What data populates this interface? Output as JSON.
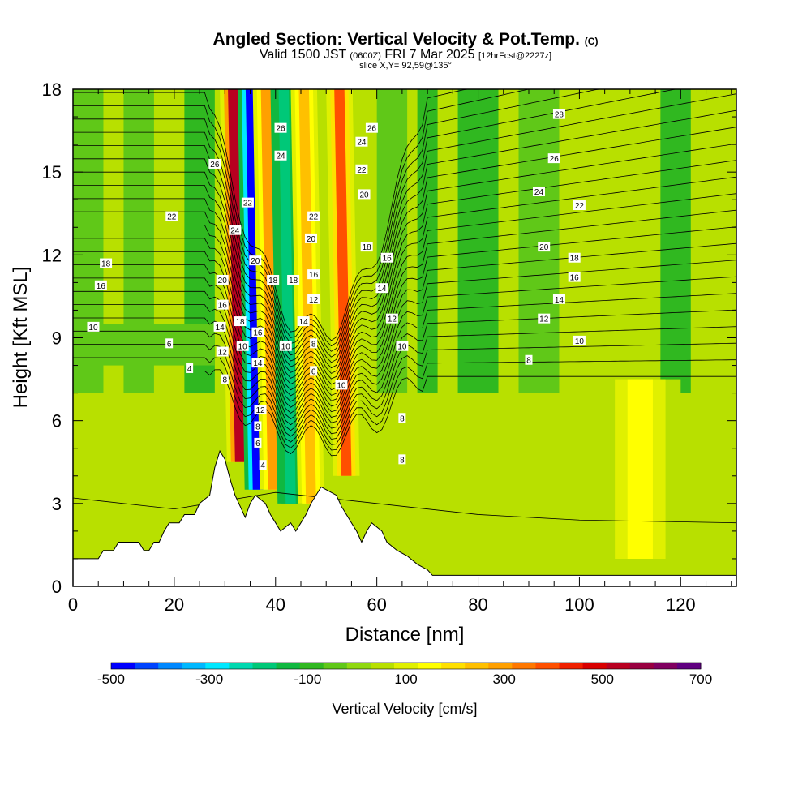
{
  "header": {
    "title_main": "Angled Section: Vertical Velocity & Pot.Temp.",
    "title_copyright": "(C)",
    "valid_prefix": "Valid 1500 JST",
    "valid_utc": "(0600Z)",
    "valid_date": "FRI 7 Mar 2025",
    "forecast_info": "[12hrFcst@2227z]",
    "slice_info": "slice X,Y= 92,59@135°"
  },
  "chart_data": {
    "type": "heatmap",
    "xlabel": "Distance [nm]",
    "ylabel": "Height [Kft MSL]",
    "xlim": [
      0,
      131
    ],
    "ylim": [
      0,
      18
    ],
    "x_ticks": [
      0,
      20,
      40,
      60,
      80,
      100,
      120
    ],
    "y_ticks": [
      0,
      3,
      6,
      9,
      12,
      15,
      18
    ],
    "colorbar": {
      "label": "Vertical Velocity [cm/s]",
      "ticks": [
        -500,
        -300,
        -100,
        100,
        300,
        500,
        700
      ],
      "levels": [
        -500,
        -450,
        -400,
        -350,
        -300,
        -250,
        -200,
        -150,
        -100,
        -50,
        0,
        50,
        100,
        150,
        200,
        250,
        300,
        350,
        400,
        450,
        500,
        550,
        600,
        650,
        700
      ],
      "colors": [
        "#0000ff",
        "#0044ff",
        "#0088ff",
        "#00b8ff",
        "#00e8ff",
        "#00d8b0",
        "#00c878",
        "#10b840",
        "#30b820",
        "#60c818",
        "#90d810",
        "#b8e000",
        "#e0f000",
        "#ffff00",
        "#ffe000",
        "#ffc000",
        "#ffa000",
        "#ff7800",
        "#ff5000",
        "#f02000",
        "#d80000",
        "#b80020",
        "#980040",
        "#800060",
        "#600080"
      ]
    },
    "velocity_features": [
      {
        "x": 33,
        "z_range": [
          4.5,
          18
        ],
        "w": 550,
        "note": "updraft"
      },
      {
        "x": 36.5,
        "z_range": [
          3.5,
          18
        ],
        "w": -480,
        "note": "downdraft"
      },
      {
        "x": 39.5,
        "z_range": [
          3.5,
          18
        ],
        "w": 300,
        "note": "updraft"
      },
      {
        "x": 43,
        "z_range": [
          3,
          18
        ],
        "w": -200,
        "note": "downdraft"
      },
      {
        "x": 47,
        "z_range": [
          3,
          18
        ],
        "w": 280,
        "note": "updraft"
      },
      {
        "x": 54,
        "z_range": [
          4,
          18
        ],
        "w": 400,
        "note": "updraft"
      },
      {
        "x": 112,
        "z_range": [
          1,
          7.5
        ],
        "w": 160,
        "note": "weak updraft"
      }
    ],
    "contour_variable": "Potential temperature",
    "contour_labels": [
      {
        "x": 4,
        "y": 9.4,
        "text": "10"
      },
      {
        "x": 5.5,
        "y": 10.9,
        "text": "16"
      },
      {
        "x": 6.5,
        "y": 11.7,
        "text": "18"
      },
      {
        "x": 19,
        "y": 8.8,
        "text": "6"
      },
      {
        "x": 23,
        "y": 7.9,
        "text": "4"
      },
      {
        "x": 19.5,
        "y": 13.4,
        "text": "22"
      },
      {
        "x": 28,
        "y": 15.3,
        "text": "26"
      },
      {
        "x": 29.5,
        "y": 11.1,
        "text": "20"
      },
      {
        "x": 29.5,
        "y": 10.2,
        "text": "16"
      },
      {
        "x": 29,
        "y": 9.4,
        "text": "14"
      },
      {
        "x": 29.5,
        "y": 8.5,
        "text": "12"
      },
      {
        "x": 30,
        "y": 7.5,
        "text": "8"
      },
      {
        "x": 32,
        "y": 12.9,
        "text": "24"
      },
      {
        "x": 34.5,
        "y": 13.9,
        "text": "22"
      },
      {
        "x": 33,
        "y": 9.6,
        "text": "18"
      },
      {
        "x": 33.5,
        "y": 8.7,
        "text": "10"
      },
      {
        "x": 36,
        "y": 11.8,
        "text": "20"
      },
      {
        "x": 36.5,
        "y": 9.2,
        "text": "16"
      },
      {
        "x": 36.5,
        "y": 8.1,
        "text": "14"
      },
      {
        "x": 37,
        "y": 6.4,
        "text": "12"
      },
      {
        "x": 36.5,
        "y": 5.8,
        "text": "8"
      },
      {
        "x": 36.5,
        "y": 5.2,
        "text": "6"
      },
      {
        "x": 37.5,
        "y": 4.4,
        "text": "4"
      },
      {
        "x": 41,
        "y": 16.6,
        "text": "26"
      },
      {
        "x": 41,
        "y": 15.6,
        "text": "24"
      },
      {
        "x": 39.5,
        "y": 11.1,
        "text": "18"
      },
      {
        "x": 42,
        "y": 8.7,
        "text": "10"
      },
      {
        "x": 43.5,
        "y": 11.1,
        "text": "18"
      },
      {
        "x": 45.5,
        "y": 9.6,
        "text": "14"
      },
      {
        "x": 47.5,
        "y": 13.4,
        "text": "22"
      },
      {
        "x": 47,
        "y": 12.6,
        "text": "20"
      },
      {
        "x": 47.5,
        "y": 11.3,
        "text": "16"
      },
      {
        "x": 47.5,
        "y": 10.4,
        "text": "12"
      },
      {
        "x": 47.5,
        "y": 8.8,
        "text": "8"
      },
      {
        "x": 47.5,
        "y": 7.8,
        "text": "6"
      },
      {
        "x": 53,
        "y": 7.3,
        "text": "10"
      },
      {
        "x": 57,
        "y": 16.1,
        "text": "24"
      },
      {
        "x": 57,
        "y": 15.1,
        "text": "22"
      },
      {
        "x": 57.5,
        "y": 14.2,
        "text": "20"
      },
      {
        "x": 58,
        "y": 12.3,
        "text": "18"
      },
      {
        "x": 59,
        "y": 16.6,
        "text": "26"
      },
      {
        "x": 62,
        "y": 11.9,
        "text": "16"
      },
      {
        "x": 61,
        "y": 10.8,
        "text": "14"
      },
      {
        "x": 63,
        "y": 9.7,
        "text": "12"
      },
      {
        "x": 65,
        "y": 8.7,
        "text": "10"
      },
      {
        "x": 65,
        "y": 6.1,
        "text": "8"
      },
      {
        "x": 65,
        "y": 4.6,
        "text": "8"
      },
      {
        "x": 92,
        "y": 14.3,
        "text": "24"
      },
      {
        "x": 93,
        "y": 12.3,
        "text": "20"
      },
      {
        "x": 93,
        "y": 9.7,
        "text": "12"
      },
      {
        "x": 96,
        "y": 17.1,
        "text": "28"
      },
      {
        "x": 95,
        "y": 15.5,
        "text": "26"
      },
      {
        "x": 96,
        "y": 10.4,
        "text": "14"
      },
      {
        "x": 99,
        "y": 11.2,
        "text": "16"
      },
      {
        "x": 99,
        "y": 11.9,
        "text": "18"
      },
      {
        "x": 100,
        "y": 13.8,
        "text": "22"
      },
      {
        "x": 100,
        "y": 8.9,
        "text": "10"
      },
      {
        "x": 90,
        "y": 8.2,
        "text": "8"
      }
    ],
    "terrain_profile": [
      [
        0,
        1.0
      ],
      [
        5,
        1.0
      ],
      [
        6,
        1.3
      ],
      [
        8,
        1.3
      ],
      [
        9,
        1.6
      ],
      [
        13,
        1.6
      ],
      [
        14,
        1.3
      ],
      [
        15,
        1.3
      ],
      [
        16,
        1.6
      ],
      [
        17,
        1.6
      ],
      [
        18,
        2.0
      ],
      [
        19,
        2.3
      ],
      [
        21,
        2.3
      ],
      [
        22,
        2.6
      ],
      [
        24,
        2.6
      ],
      [
        25,
        3.0
      ],
      [
        27,
        3.3
      ],
      [
        27.5,
        3.8
      ],
      [
        28,
        4.3
      ],
      [
        29,
        4.9
      ],
      [
        30,
        4.6
      ],
      [
        31,
        3.9
      ],
      [
        32,
        3.3
      ],
      [
        33,
        2.9
      ],
      [
        34,
        2.5
      ],
      [
        35,
        3.0
      ],
      [
        36,
        3.3
      ],
      [
        38,
        3.0
      ],
      [
        39,
        2.6
      ],
      [
        40,
        2.3
      ],
      [
        41,
        2.0
      ],
      [
        43,
        2.3
      ],
      [
        44,
        2.0
      ],
      [
        45,
        2.3
      ],
      [
        46,
        2.6
      ],
      [
        47,
        3.0
      ],
      [
        48,
        3.3
      ],
      [
        49,
        3.6
      ],
      [
        52,
        3.3
      ],
      [
        53,
        2.9
      ],
      [
        54,
        2.6
      ],
      [
        55,
        2.3
      ],
      [
        56,
        2.0
      ],
      [
        57,
        1.6
      ],
      [
        58,
        2.0
      ],
      [
        59,
        2.3
      ],
      [
        61,
        2.0
      ],
      [
        62,
        1.6
      ],
      [
        64,
        1.3
      ],
      [
        66,
        1.1
      ],
      [
        68,
        0.8
      ],
      [
        70,
        0.6
      ],
      [
        71,
        0.4
      ],
      [
        131,
        0.4
      ]
    ]
  }
}
